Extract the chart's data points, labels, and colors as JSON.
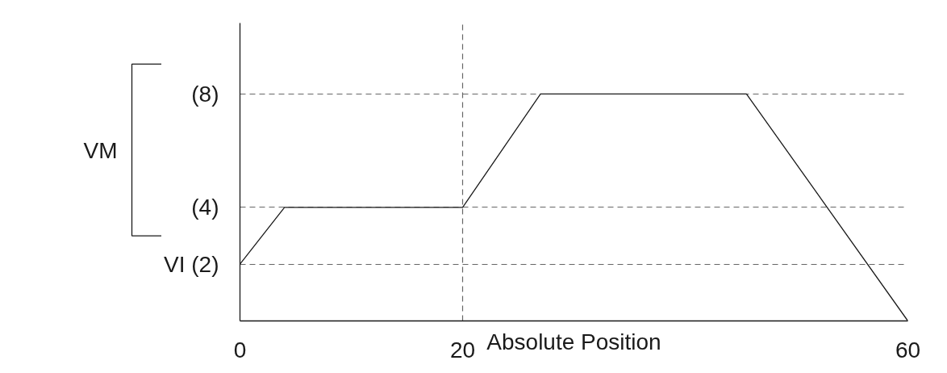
{
  "chart_data": {
    "type": "line",
    "xlabel": "Absolute Position",
    "x": [
      0,
      4,
      20,
      27,
      45.5,
      60
    ],
    "series": [
      {
        "color": "#1a1a1a",
        "values": [
          2,
          4,
          4,
          8,
          8,
          0
        ]
      }
    ],
    "xlim": [
      0,
      60
    ],
    "ylim": [
      0,
      10.5
    ],
    "xticks": [
      0,
      20,
      60
    ],
    "yticks": [
      {
        "value": 2,
        "label": "VI (2)"
      },
      {
        "value": 4,
        "label": "(4)"
      },
      {
        "value": 8,
        "label": "(8)"
      }
    ],
    "grid": true,
    "annotations": [
      "VM"
    ]
  }
}
